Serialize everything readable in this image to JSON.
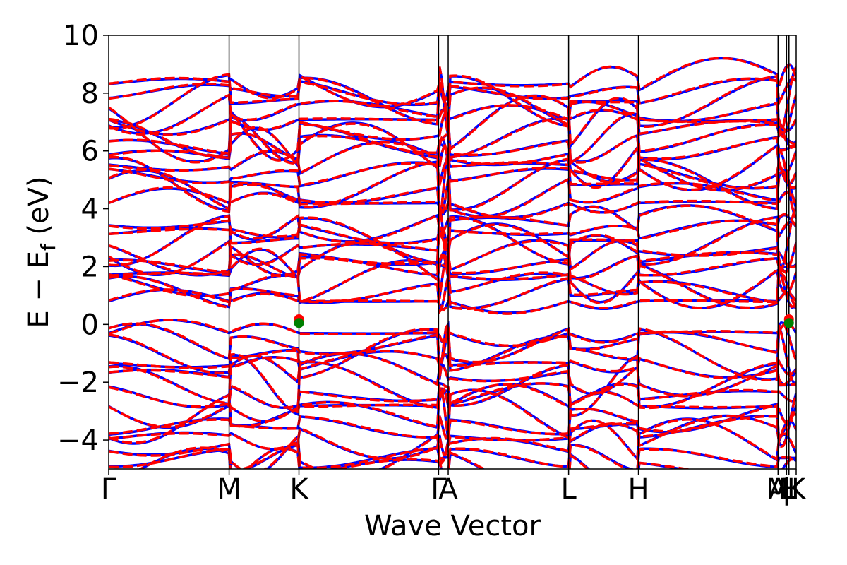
{
  "chart_data": {
    "type": "line",
    "xlabel": "Wave Vector",
    "ylabel": "E − E",
    "ylabel_sub": "f",
    "ylabel_unit": " (eV)",
    "ylim": [
      -5,
      10
    ],
    "yticks": [
      {
        "value": -4,
        "label": "−4"
      },
      {
        "value": -2,
        "label": "−2"
      },
      {
        "value": 0,
        "label": "0"
      },
      {
        "value": 2,
        "label": "2"
      },
      {
        "value": 4,
        "label": "4"
      },
      {
        "value": 6,
        "label": "6"
      },
      {
        "value": 8,
        "label": "8"
      },
      {
        "value": 10,
        "label": "10"
      }
    ],
    "xlim": [
      0,
      5.71
    ],
    "kpoints": [
      {
        "label": "Γ",
        "x": 0.0
      },
      {
        "label": "M",
        "x": 1.0
      },
      {
        "label": "K",
        "x": 1.58
      },
      {
        "label": "Γ",
        "x": 2.74
      },
      {
        "label": "A",
        "x": 2.82
      },
      {
        "label": "L",
        "x": 3.82
      },
      {
        "label": "H",
        "x": 4.4
      },
      {
        "label": "A",
        "x": 5.56
      },
      {
        "label": "L",
        "x": 5.65
      },
      {
        "label": "M",
        "x": 5.56
      },
      {
        "label": "|",
        "x": 5.63
      },
      {
        "label": "K",
        "x": 5.71
      },
      {
        "label": "H",
        "x": 5.65
      }
    ],
    "grid": false,
    "series": [
      {
        "color": "#0000ff",
        "style": "solid"
      },
      {
        "color": "#ff0000",
        "style": "dashed"
      }
    ],
    "markers": [
      {
        "x": 1.58,
        "y": 0.18,
        "color": "#ff0000"
      },
      {
        "x": 1.58,
        "y": 0.05,
        "color": "#008000"
      },
      {
        "x": 5.65,
        "y": 0.18,
        "color": "#ff0000"
      },
      {
        "x": 5.65,
        "y": 0.05,
        "color": "#008000"
      }
    ]
  }
}
